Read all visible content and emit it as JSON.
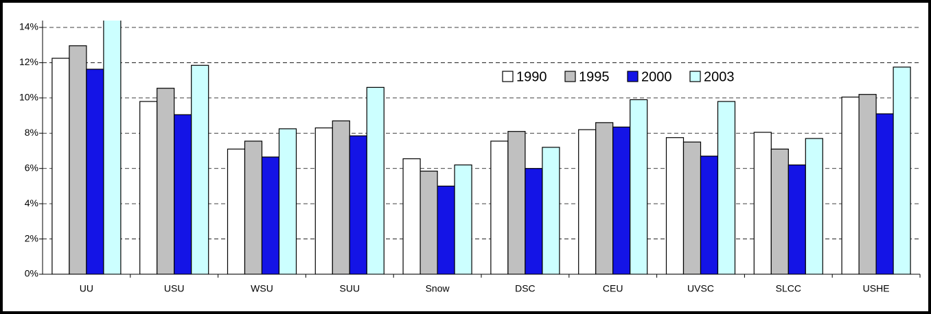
{
  "chart_data": {
    "type": "bar",
    "categories": [
      "UU",
      "USU",
      "WSU",
      "SUU",
      "Snow",
      "DSC",
      "CEU",
      "UVSC",
      "SLCC",
      "USHE"
    ],
    "series": [
      {
        "name": "1990",
        "color": "#ffffff",
        "values": [
          12.25,
          9.8,
          7.1,
          8.3,
          6.55,
          7.55,
          8.2,
          7.75,
          8.05,
          10.05
        ]
      },
      {
        "name": "1995",
        "color": "#c0c0c0",
        "values": [
          12.96,
          10.55,
          7.55,
          8.7,
          5.85,
          8.1,
          8.6,
          7.5,
          7.1,
          10.2
        ]
      },
      {
        "name": "2000",
        "color": "#1414e6",
        "values": [
          11.63,
          9.05,
          6.65,
          7.85,
          5.0,
          6.0,
          8.35,
          6.7,
          6.2,
          9.1
        ]
      },
      {
        "name": "2003",
        "color": "#ccffff",
        "values": [
          14.5,
          11.85,
          8.25,
          10.6,
          6.2,
          7.2,
          9.9,
          9.8,
          7.7,
          11.75
        ]
      }
    ],
    "ylim": [
      0,
      14
    ],
    "yticks": [
      {
        "value": 0,
        "label": "0%"
      },
      {
        "value": 2,
        "label": "2%"
      },
      {
        "value": 4,
        "label": "4%"
      },
      {
        "value": 6,
        "label": "6%"
      },
      {
        "value": 8,
        "label": "8%"
      },
      {
        "value": 10,
        "label": "10%"
      },
      {
        "value": 12,
        "label": "12%"
      },
      {
        "value": 14,
        "label": "14%"
      }
    ],
    "grid": true,
    "legend": "top-right"
  }
}
